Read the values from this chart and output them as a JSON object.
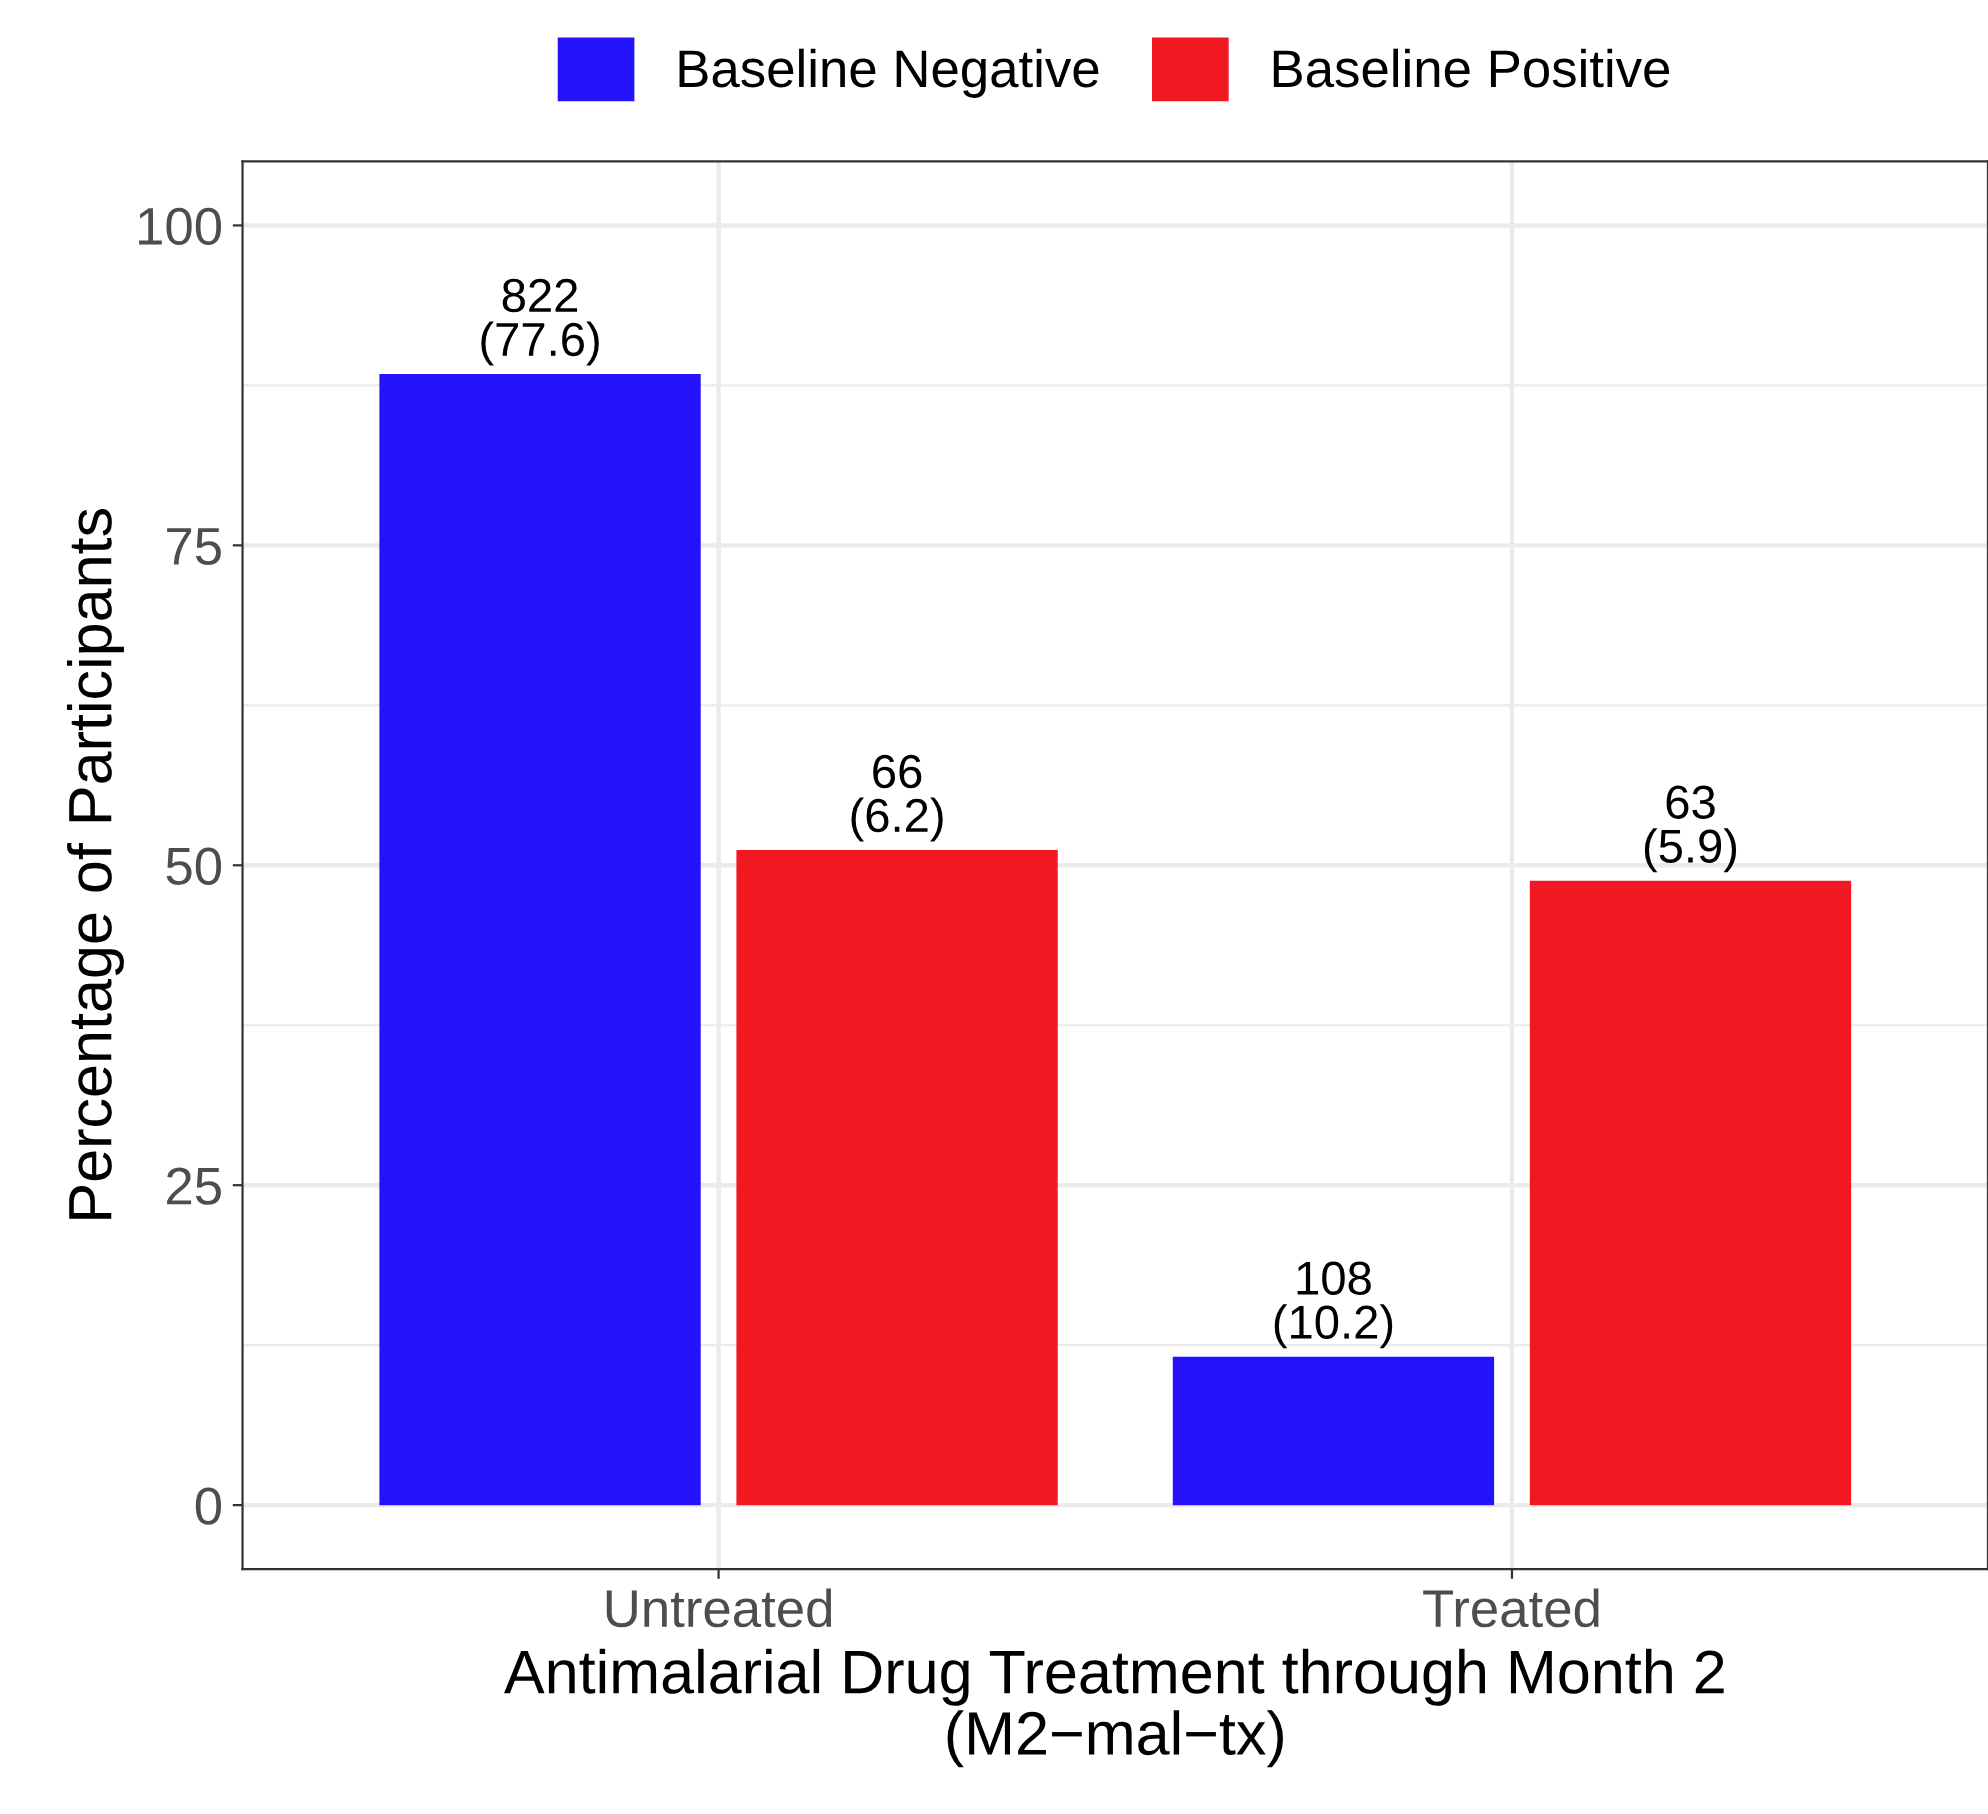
{
  "chart_data": {
    "type": "bar",
    "xlabel": "Antimalarial Drug Treatment through Month 2\n(M2−mal−tx)",
    "ylabel": "Percentage of Participants",
    "categories": [
      "Untreated",
      "Treated"
    ],
    "series": [
      {
        "name": "Baseline Negative",
        "color": "#2312fb",
        "values": [
          88.4,
          11.6
        ]
      },
      {
        "name": "Baseline Positive",
        "color": "#f21822",
        "values": [
          51.2,
          48.8
        ]
      }
    ],
    "annotations": [
      "822\n(77.6)",
      "108\n(10.2)",
      "66\n(6.2)",
      "63\n(5.9)"
    ],
    "ylim": [
      -5,
      105
    ],
    "yticks": [
      0,
      25,
      50,
      75,
      100
    ],
    "grid": true,
    "legend": "top"
  }
}
